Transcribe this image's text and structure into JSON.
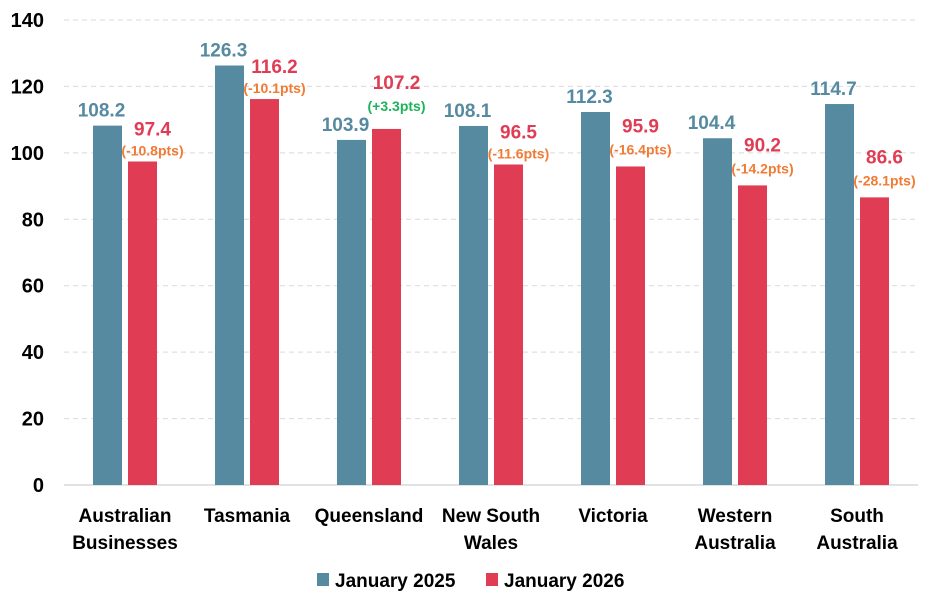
{
  "chart_data": {
    "type": "bar",
    "title": "",
    "xlabel": "",
    "ylabel": "",
    "ylim": [
      0,
      140
    ],
    "yticks": [
      0,
      20,
      40,
      60,
      80,
      100,
      120,
      140
    ],
    "grid": true,
    "legend_position": "bottom-center",
    "categories": [
      [
        "Australian",
        "Businesses"
      ],
      [
        "Tasmania"
      ],
      [
        "Queensland"
      ],
      [
        "New South",
        "Wales"
      ],
      [
        "Victoria"
      ],
      [
        "Western",
        "Australia"
      ],
      [
        "South",
        "Australia"
      ]
    ],
    "series": [
      {
        "name": "January 2025",
        "color": "#568aa0",
        "values": [
          108.2,
          126.3,
          103.9,
          108.1,
          112.3,
          104.4,
          114.7
        ],
        "labels": [
          "108.2",
          "126.3",
          "103.9",
          "108.1",
          "112.3",
          "104.4",
          "114.7"
        ]
      },
      {
        "name": "January 2026",
        "color": "#e03c54",
        "values": [
          97.4,
          116.2,
          107.2,
          96.5,
          95.9,
          90.2,
          86.6
        ],
        "labels": [
          "97.4",
          "116.2",
          "107.2",
          "96.5",
          "95.9",
          "90.2",
          "86.6"
        ]
      }
    ],
    "annotations": [
      {
        "text": "(-10.8pts)",
        "change": -10.8
      },
      {
        "text": "(-10.1pts)",
        "change": -10.1
      },
      {
        "text": "(+3.3pts)",
        "change": 3.3
      },
      {
        "text": "(-11.6pts)",
        "change": -11.6
      },
      {
        "text": "(-16.4pts)",
        "change": -16.4
      },
      {
        "text": "(-14.2pts)",
        "change": -14.2
      },
      {
        "text": "(-28.1pts)",
        "change": -28.1
      }
    ],
    "colors": {
      "negative_change": "#f07b34",
      "positive_change": "#1db35a",
      "grid": "#d9d9d9",
      "axis": "#d9d9d9"
    }
  }
}
